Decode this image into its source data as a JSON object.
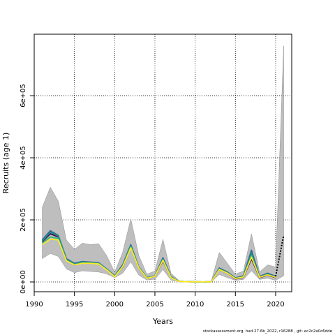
{
  "footer": "stockassessment.org, had.27.6b_2022, r16288 , git: ec2c2a0c6dde",
  "colors": {
    "band": "#bebebe",
    "gridline": "#000000",
    "series": [
      "#440154",
      "#31688e",
      "#21908d",
      "#35b779",
      "#fde725",
      "#1fa187",
      "#90d743",
      "#b5de2b"
    ],
    "forecast": "#000000"
  },
  "chart_data": {
    "type": "line",
    "title": "",
    "xlabel": "Years",
    "ylabel": "Recruits (age 1)",
    "xlim": [
      1990,
      2022
    ],
    "ylim": [
      0,
      780000
    ],
    "xticks": [
      1990,
      1995,
      2000,
      2005,
      2010,
      2015,
      2020
    ],
    "yticks": [
      0,
      200000,
      400000,
      600000
    ],
    "ytick_labels": [
      "0e+00",
      "2e+05",
      "4e+05",
      "6e+05"
    ],
    "grid": true,
    "x": [
      1991,
      1992,
      1993,
      1994,
      1995,
      1996,
      1997,
      1998,
      1999,
      2000,
      2001,
      2002,
      2003,
      2004,
      2005,
      2006,
      2007,
      2008,
      2009,
      2010,
      2011,
      2012,
      2013,
      2014,
      2015,
      2016,
      2017,
      2018,
      2019,
      2020
    ],
    "lower": [
      75000,
      92000,
      82000,
      42000,
      30000,
      36000,
      34000,
      32000,
      26000,
      14000,
      28000,
      65000,
      22000,
      6000,
      9000,
      40000,
      6000,
      1000,
      300,
      200,
      100,
      200,
      24000,
      14000,
      5000,
      8000,
      36000,
      8000,
      12000,
      5000
    ],
    "upper": [
      240000,
      305000,
      260000,
      135000,
      105000,
      125000,
      120000,
      123000,
      85000,
      32000,
      95000,
      203000,
      85000,
      25000,
      35000,
      137000,
      28000,
      4000,
      2000,
      1000,
      500,
      2000,
      95000,
      60000,
      25000,
      35000,
      155000,
      32000,
      55000,
      48000
    ],
    "series": [
      {
        "values": [
          130000,
          155000,
          145000,
          70000,
          55000,
          62000,
          62000,
          60000,
          40000,
          18000,
          48000,
          112000,
          45000,
          12000,
          18000,
          68000,
          15000,
          2000,
          800,
          500,
          200,
          600,
          40000,
          28000,
          10000,
          15000,
          75000,
          14000,
          22000,
          14000
        ]
      },
      {
        "values": [
          135000,
          165000,
          150000,
          75000,
          60000,
          66000,
          64000,
          62000,
          42000,
          20000,
          55000,
          120000,
          48000,
          14000,
          20000,
          78000,
          17000,
          2500,
          900,
          600,
          250,
          800,
          45000,
          32000,
          13000,
          20000,
          102000,
          18000,
          28000,
          18000
        ]
      },
      {
        "values": [
          132000,
          160000,
          148000,
          72000,
          58000,
          64000,
          63000,
          61000,
          41000,
          19000,
          52000,
          116000,
          47000,
          13000,
          19000,
          74000,
          16000,
          2200,
          850,
          550,
          220,
          700,
          43000,
          30000,
          12000,
          18000,
          92000,
          16000,
          25000,
          16000
        ]
      },
      {
        "values": [
          125000,
          145000,
          140000,
          70000,
          56000,
          62000,
          61000,
          59000,
          40000,
          18000,
          50000,
          114000,
          46000,
          13000,
          19000,
          72000,
          15000,
          2000,
          800,
          500,
          200,
          650,
          41000,
          29000,
          11000,
          17000,
          85000,
          16000,
          24000,
          15000
        ]
      },
      {
        "values": [
          120000,
          138000,
          135000,
          68000,
          55000,
          60000,
          60000,
          58000,
          39000,
          17000,
          49000,
          110000,
          45000,
          12000,
          18000,
          70000,
          14000,
          1900,
          750,
          480,
          190,
          600,
          40000,
          28000,
          11000,
          16000,
          80000,
          15000,
          23000,
          15000
        ]
      }
    ],
    "forecast": {
      "x": [
        2020,
        2021
      ],
      "values": [
        18000,
        150000
      ],
      "upper": [
        48000,
        760000
      ],
      "lower": [
        5000,
        20000
      ]
    }
  }
}
